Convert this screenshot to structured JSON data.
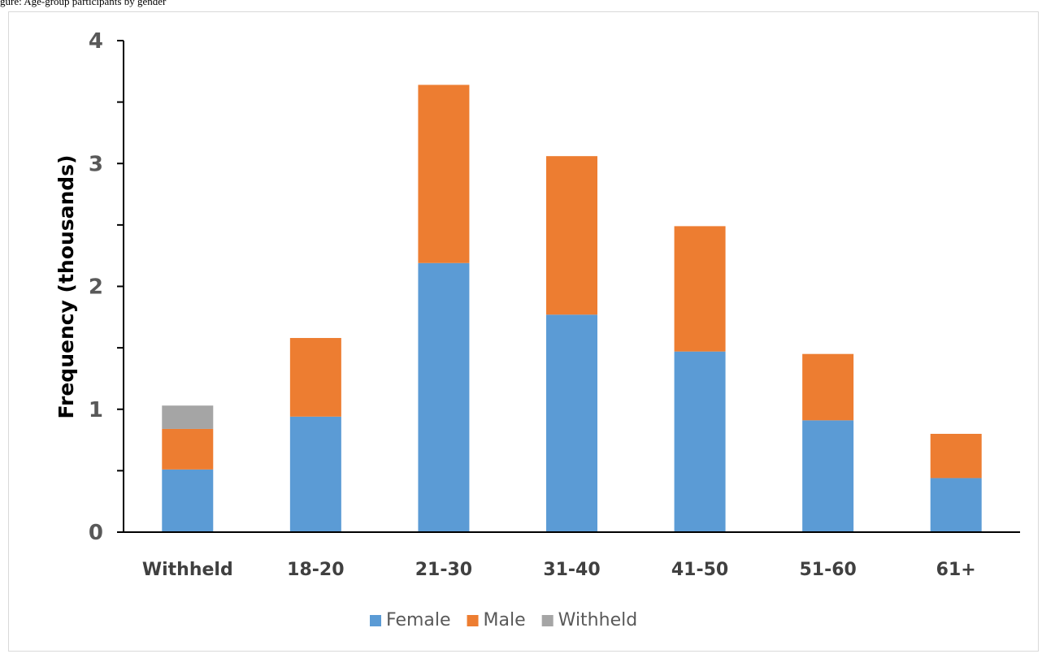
{
  "caption": "gure: Age-group participants by gender",
  "chart_data": {
    "type": "bar",
    "stacked": true,
    "categories": [
      "Withheld",
      "18-20",
      "21-30",
      "31-40",
      "41-50",
      "51-60",
      "61+"
    ],
    "series": [
      {
        "name": "Female",
        "color": "#5b9bd5",
        "values": [
          0.51,
          0.94,
          2.19,
          1.77,
          1.47,
          0.91,
          0.44
        ]
      },
      {
        "name": "Male",
        "color": "#ed7d31",
        "values": [
          0.33,
          0.64,
          1.45,
          1.29,
          1.02,
          0.54,
          0.36
        ]
      },
      {
        "name": "Withheld",
        "color": "#a5a5a5",
        "values": [
          0.19,
          0,
          0,
          0,
          0,
          0,
          0
        ]
      }
    ],
    "ylabel": "Frequency (thousands)",
    "xlabel": "",
    "ylim": [
      0,
      4
    ],
    "yticks": [
      "0",
      "1",
      "2",
      "3",
      "4"
    ],
    "legend": "bottom",
    "grid": false
  }
}
